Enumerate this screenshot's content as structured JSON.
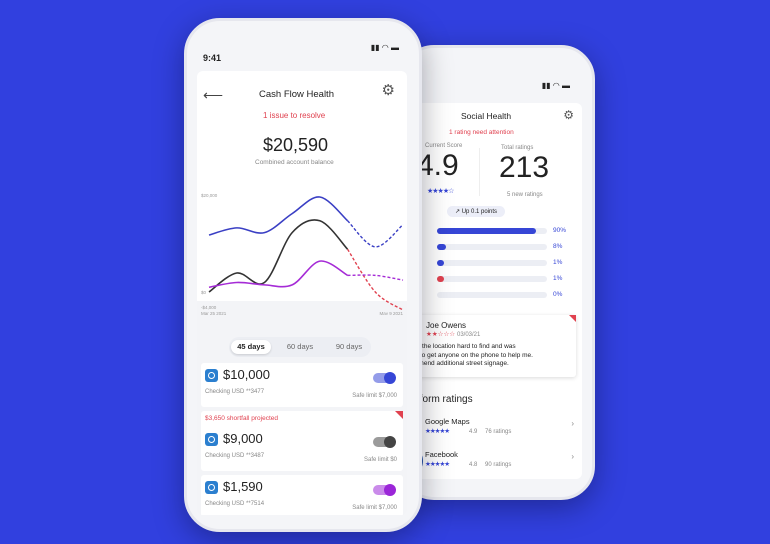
{
  "colors": {
    "background": "#3140df",
    "accent": "#3646d6",
    "alert": "#e0414f",
    "purple": "#9b26d8"
  },
  "social": {
    "title": "Social Health",
    "alert": "1 rating need attention",
    "current_score_label": "Current Score",
    "current_score": "4.9",
    "score_stars": "★★★★☆",
    "total_label": "Total ratings",
    "total": "213",
    "new_ratings": "5 new ratings",
    "trend": "↗ Up 0.1 points",
    "distribution": [
      {
        "pct": "90%",
        "value": 90,
        "color": "#3646d6"
      },
      {
        "pct": "8%",
        "value": 8,
        "color": "#3646d6"
      },
      {
        "pct": "1%",
        "value": 1,
        "color": "#3646d6"
      },
      {
        "pct": "1%",
        "value": 1,
        "color": "#e0414f"
      },
      {
        "pct": "0%",
        "value": 0,
        "color": "#3646d6"
      }
    ],
    "review": {
      "name": "Joe Owens",
      "stars": "★★☆☆☆",
      "date": "03/03/21",
      "text": [
        "nd the location hard to find and was",
        "le to get anyone on the phone to help me.",
        "mmend additional street signage."
      ]
    },
    "platform_title": "tform ratings",
    "platforms": [
      {
        "name": "Google Maps",
        "stars": "★★★★★",
        "score": "4.9",
        "count": "76 ratings"
      },
      {
        "name": "Facebook",
        "stars": "★★★★★",
        "score": "4.8",
        "count": "90 ratings"
      }
    ]
  },
  "cash": {
    "time": "9:41",
    "title": "Cash Flow Health",
    "alert": "1 issue to resolve",
    "balance": "$20,590",
    "balance_label": "Combined account balance",
    "tabs": [
      "45 days",
      "60 days",
      "90 days"
    ],
    "active_tab": 0,
    "accounts": [
      {
        "amount": "$10,000",
        "label": "Checking USD **3477",
        "limit": "Safe limit $7,000",
        "toggle_color": "#3646d6",
        "toggle_on": true
      },
      {
        "warning": "$3,650 shortfall projected",
        "amount": "$9,000",
        "label": "Checking USD **3487",
        "limit": "Safe limit $0",
        "toggle_color": "#444444",
        "toggle_on": true
      },
      {
        "amount": "$1,590",
        "label": "Checking USD **7514",
        "limit": "Safe limit $7,000",
        "toggle_color": "#9b26d8",
        "toggle_on": true
      }
    ]
  },
  "chart_data": {
    "type": "line",
    "y_ticks": [
      "$20,000",
      "$0",
      "-$4,000"
    ],
    "ylim": [
      -4000,
      20000
    ],
    "x_start": "Mar 25 2021",
    "x_end": "May 9 2021",
    "series": [
      {
        "color": "#3a3fc4",
        "projected_from": 5,
        "values": [
          12000,
          13500,
          12500,
          16500,
          20000,
          15000,
          9500,
          14200
        ]
      },
      {
        "color": "#333333",
        "projected_color": "#e0414f",
        "projected_from": 5,
        "values": [
          0,
          4000,
          2000,
          12500,
          15000,
          9000,
          0,
          -3800
        ]
      },
      {
        "color": "#a52bd6",
        "projected_from": 5,
        "values": [
          1000,
          2000,
          1500,
          1500,
          6500,
          3500,
          3500,
          2500
        ]
      }
    ]
  }
}
